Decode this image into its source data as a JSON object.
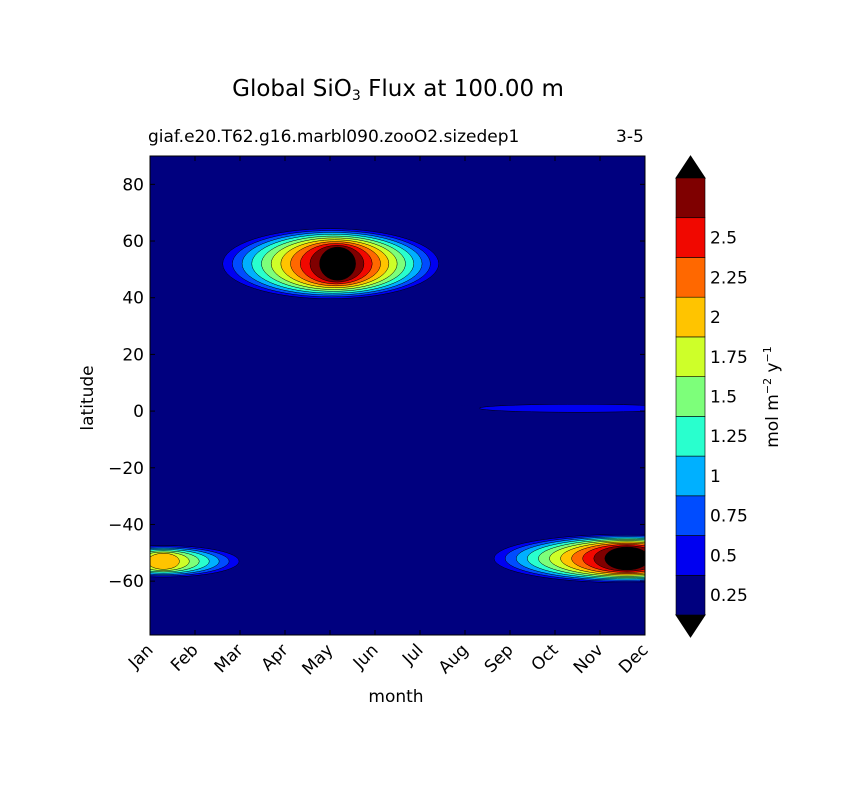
{
  "chart_data": {
    "type": "heatmap",
    "title": "Global SiO",
    "title_subscript": "3",
    "title_rest": " Flux at 100.00 m",
    "subtitle_left": "giaf.e20.T62.g16.marbl090.zooO2.sizedep1",
    "subtitle_right": "3-5",
    "xlabel": "month",
    "ylabel": "latitude",
    "x_categories": [
      "Jan",
      "Feb",
      "Mar",
      "Apr",
      "May",
      "Jun",
      "Jul",
      "Aug",
      "Sep",
      "Oct",
      "Nov",
      "Dec"
    ],
    "y_ticks": [
      80,
      60,
      40,
      20,
      0,
      -20,
      -40,
      -60
    ],
    "y_tick_labels": [
      "80",
      "60",
      "40",
      "20",
      "0",
      "−20",
      "−40",
      "−60"
    ],
    "ylim": [
      -79,
      90
    ],
    "colorbar": {
      "label_base": "mol m",
      "label_exp1": "−2",
      "label_mid": " y",
      "label_exp2": "−1",
      "levels": [
        0,
        0.25,
        0.5,
        0.75,
        1,
        1.25,
        1.5,
        1.75,
        2,
        2.25,
        2.5,
        2.75
      ],
      "tick_labels": [
        "0.25",
        "0.5",
        "0.75",
        "1",
        "1.25",
        "1.5",
        "1.75",
        "2",
        "2.25",
        "2.5"
      ],
      "colors": [
        "#00007f",
        "#0000f1",
        "#004cff",
        "#00b0ff",
        "#29ffce",
        "#7dff7a",
        "#ceff29",
        "#ffc400",
        "#ff6800",
        "#f10800",
        "#7f0000"
      ],
      "under_color": "#000000",
      "over_color": "#000000",
      "extend": "both"
    },
    "features": [
      {
        "region": "northern spring bloom",
        "month_center": 4.0,
        "lat_center": 52,
        "peak_value": 3.0
      },
      {
        "region": "southern summer bloom",
        "month_center": 10.6,
        "lat_center": -52,
        "peak_value": 3.0
      },
      {
        "region": "southern Jan-Feb band",
        "month_center": 0.3,
        "lat_center": -53,
        "peak_value": 1.9
      },
      {
        "region": "equatorial band",
        "month_center": 9.5,
        "lat_center": 1,
        "peak_value": 0.3
      }
    ]
  }
}
